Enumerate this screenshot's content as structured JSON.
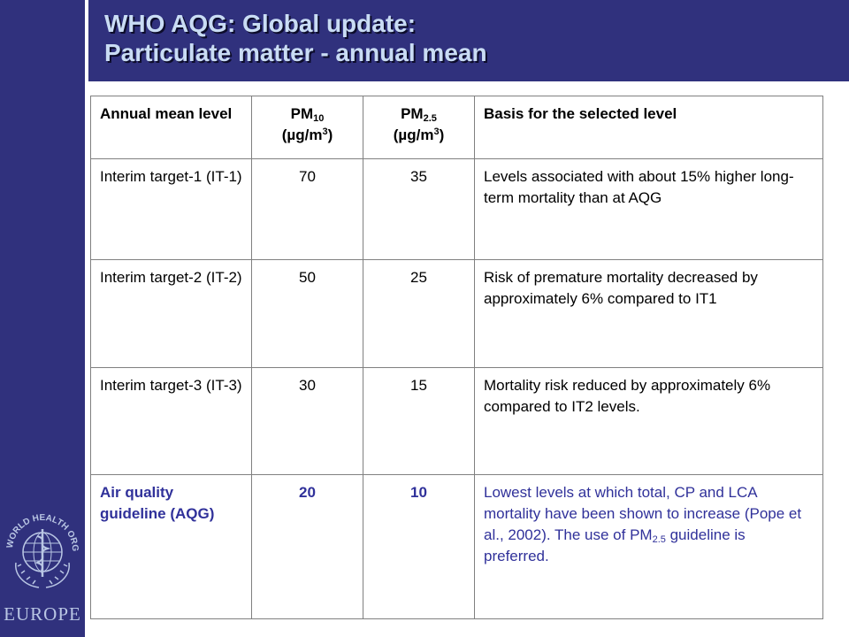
{
  "title": {
    "line1": "WHO AQG: Global update:",
    "line2": "Particulate matter - annual mean"
  },
  "logo": {
    "org_text": "WORLD HEALTH ORGANIZATION",
    "region": "EUROPE"
  },
  "table": {
    "header": {
      "level": "Annual mean level",
      "pm10_main": "PM",
      "pm10_sub": "10",
      "pm10_unit_pre": "(µg/m",
      "pm10_unit_sup": "3",
      "pm10_unit_post": ")",
      "pm25_main": "PM",
      "pm25_sub": "2.5",
      "pm25_unit_pre": "(µg/m",
      "pm25_unit_sup": "3",
      "pm25_unit_post": ")",
      "basis": "Basis for the selected level"
    },
    "rows": [
      {
        "level": "Interim target-1 (IT-1)",
        "pm10": "70",
        "pm25": "35",
        "basis": "Levels associated with about 15% higher long-term mortality than at AQG"
      },
      {
        "level": "Interim target-2 (IT-2)",
        "pm10": "50",
        "pm25": "25",
        "basis": "Risk of premature mortality decreased by approximately 6% compared to IT1"
      },
      {
        "level": "Interim target-3 (IT-3)",
        "pm10": "30",
        "pm25": "15",
        "basis": "Mortality risk reduced by approximately 6% compared to IT2 levels."
      }
    ],
    "aqg": {
      "level": "Air quality guideline (AQG)",
      "pm10": "20",
      "pm25": "10",
      "basis_pre": "Lowest levels at which total, CP and LCA mortality have been shown to increase (Pope et al., 2002). The use of PM",
      "basis_sub": "2.5",
      "basis_post": " guideline is preferred."
    }
  },
  "colors": {
    "brand": "#30317d",
    "title_text": "#c9dcf4",
    "aqg_text": "#30319a"
  }
}
